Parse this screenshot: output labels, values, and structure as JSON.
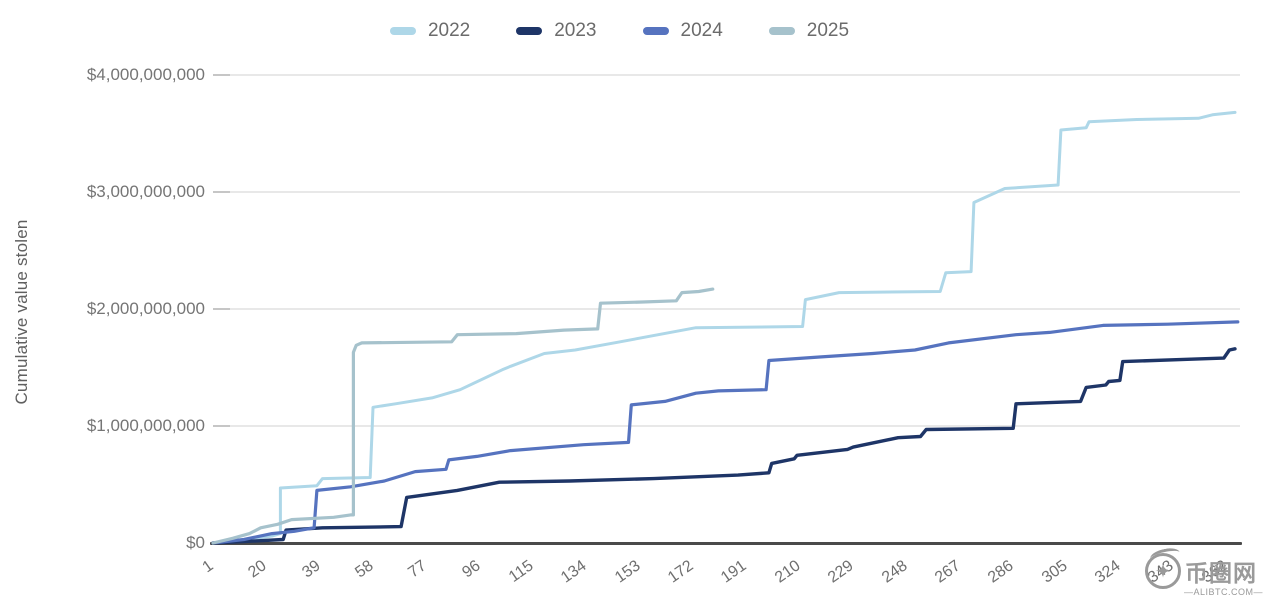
{
  "legend": {
    "items": [
      {
        "label": "2022",
        "color": "#aed7e8"
      },
      {
        "label": "2023",
        "color": "#1e3567"
      },
      {
        "label": "2024",
        "color": "#5673bf"
      },
      {
        "label": "2025",
        "color": "#a6c2cc"
      }
    ]
  },
  "y_axis": {
    "title": "Cumulative value stolen",
    "tick_labels": [
      "$0",
      "$1,000,000,000",
      "$2,000,000,000",
      "$3,000,000,000",
      "$4,000,000,000"
    ],
    "tick_values_billions": [
      0,
      1,
      2,
      3,
      4
    ]
  },
  "x_axis": {
    "tick_labels": [
      "1",
      "20",
      "39",
      "58",
      "77",
      "96",
      "115",
      "134",
      "153",
      "172",
      "191",
      "210",
      "229",
      "248",
      "267",
      "286",
      "305",
      "324",
      "343",
      "362"
    ],
    "tick_values": [
      1,
      20,
      39,
      58,
      77,
      96,
      115,
      134,
      153,
      172,
      191,
      210,
      229,
      248,
      267,
      286,
      305,
      324,
      343,
      362
    ]
  },
  "watermark": {
    "logo_glyph": "✦",
    "site_name": "币圈网",
    "domain": "—ALIBTC.COM—"
  },
  "chart_data": {
    "type": "line",
    "title": "",
    "xlabel": "",
    "ylabel": "Cumulative value stolen",
    "x_unit": "day of year",
    "value_unit": "USD billions",
    "xlim": [
      1,
      366
    ],
    "ylim_billions": [
      0,
      4
    ],
    "grid": "horizontal",
    "legend_position": "top",
    "line_style": "stepped-cumulative",
    "series": [
      {
        "name": "2022",
        "color": "#aed7e8",
        "width": 3,
        "points": [
          [
            1,
            0
          ],
          [
            8,
            0.02
          ],
          [
            16,
            0.04
          ],
          [
            22,
            0.06
          ],
          [
            25,
            0.08
          ],
          [
            25,
            0.47
          ],
          [
            38,
            0.49
          ],
          [
            40,
            0.55
          ],
          [
            57,
            0.56
          ],
          [
            58,
            1.16
          ],
          [
            66,
            1.19
          ],
          [
            79,
            1.24
          ],
          [
            89,
            1.31
          ],
          [
            104,
            1.48
          ],
          [
            107,
            1.51
          ],
          [
            119,
            1.62
          ],
          [
            130,
            1.65
          ],
          [
            146,
            1.72
          ],
          [
            173,
            1.84
          ],
          [
            211,
            1.85
          ],
          [
            212,
            2.08
          ],
          [
            224,
            2.14
          ],
          [
            260,
            2.15
          ],
          [
            262,
            2.31
          ],
          [
            271,
            2.32
          ],
          [
            272,
            2.91
          ],
          [
            283,
            3.03
          ],
          [
            302,
            3.06
          ],
          [
            303,
            3.53
          ],
          [
            312,
            3.55
          ],
          [
            313,
            3.6
          ],
          [
            330,
            3.62
          ],
          [
            352,
            3.63
          ],
          [
            357,
            3.66
          ],
          [
            365,
            3.68
          ]
        ]
      },
      {
        "name": "2023",
        "color": "#1e3567",
        "width": 3.4,
        "points": [
          [
            1,
            0
          ],
          [
            18,
            0.02
          ],
          [
            26,
            0.03
          ],
          [
            27,
            0.11
          ],
          [
            40,
            0.13
          ],
          [
            68,
            0.14
          ],
          [
            70,
            0.39
          ],
          [
            88,
            0.45
          ],
          [
            103,
            0.52
          ],
          [
            128,
            0.53
          ],
          [
            158,
            0.55
          ],
          [
            188,
            0.58
          ],
          [
            199,
            0.6
          ],
          [
            200,
            0.68
          ],
          [
            208,
            0.72
          ],
          [
            209,
            0.75
          ],
          [
            227,
            0.8
          ],
          [
            229,
            0.82
          ],
          [
            245,
            0.9
          ],
          [
            253,
            0.91
          ],
          [
            255,
            0.97
          ],
          [
            286,
            0.98
          ],
          [
            287,
            1.19
          ],
          [
            310,
            1.21
          ],
          [
            312,
            1.33
          ],
          [
            319,
            1.35
          ],
          [
            320,
            1.38
          ],
          [
            324,
            1.39
          ],
          [
            325,
            1.55
          ],
          [
            348,
            1.57
          ],
          [
            361,
            1.58
          ],
          [
            363,
            1.65
          ],
          [
            365,
            1.66
          ]
        ]
      },
      {
        "name": "2024",
        "color": "#5673bf",
        "width": 3.2,
        "points": [
          [
            1,
            0
          ],
          [
            12,
            0.03
          ],
          [
            22,
            0.08
          ],
          [
            30,
            0.1
          ],
          [
            37,
            0.13
          ],
          [
            38,
            0.45
          ],
          [
            50,
            0.48
          ],
          [
            62,
            0.53
          ],
          [
            73,
            0.61
          ],
          [
            84,
            0.63
          ],
          [
            85,
            0.71
          ],
          [
            95,
            0.74
          ],
          [
            107,
            0.79
          ],
          [
            133,
            0.84
          ],
          [
            149,
            0.86
          ],
          [
            150,
            1.18
          ],
          [
            162,
            1.21
          ],
          [
            173,
            1.28
          ],
          [
            181,
            1.3
          ],
          [
            198,
            1.31
          ],
          [
            199,
            1.56
          ],
          [
            217,
            1.59
          ],
          [
            236,
            1.62
          ],
          [
            251,
            1.65
          ],
          [
            263,
            1.71
          ],
          [
            287,
            1.78
          ],
          [
            299,
            1.8
          ],
          [
            318,
            1.86
          ],
          [
            341,
            1.87
          ],
          [
            366,
            1.89
          ]
        ]
      },
      {
        "name": "2025",
        "color": "#a6c2cc",
        "width": 3.2,
        "points": [
          [
            1,
            0
          ],
          [
            8,
            0.04
          ],
          [
            14,
            0.08
          ],
          [
            18,
            0.13
          ],
          [
            24,
            0.16
          ],
          [
            29,
            0.2
          ],
          [
            44,
            0.22
          ],
          [
            50,
            0.24
          ],
          [
            51,
            0.24
          ],
          [
            51,
            1.63
          ],
          [
            52,
            1.69
          ],
          [
            54,
            1.71
          ],
          [
            86,
            1.72
          ],
          [
            88,
            1.78
          ],
          [
            109,
            1.79
          ],
          [
            126,
            1.82
          ],
          [
            138,
            1.83
          ],
          [
            139,
            2.05
          ],
          [
            154,
            2.06
          ],
          [
            166,
            2.07
          ],
          [
            168,
            2.14
          ],
          [
            174,
            2.15
          ],
          [
            179,
            2.17
          ]
        ]
      }
    ]
  }
}
